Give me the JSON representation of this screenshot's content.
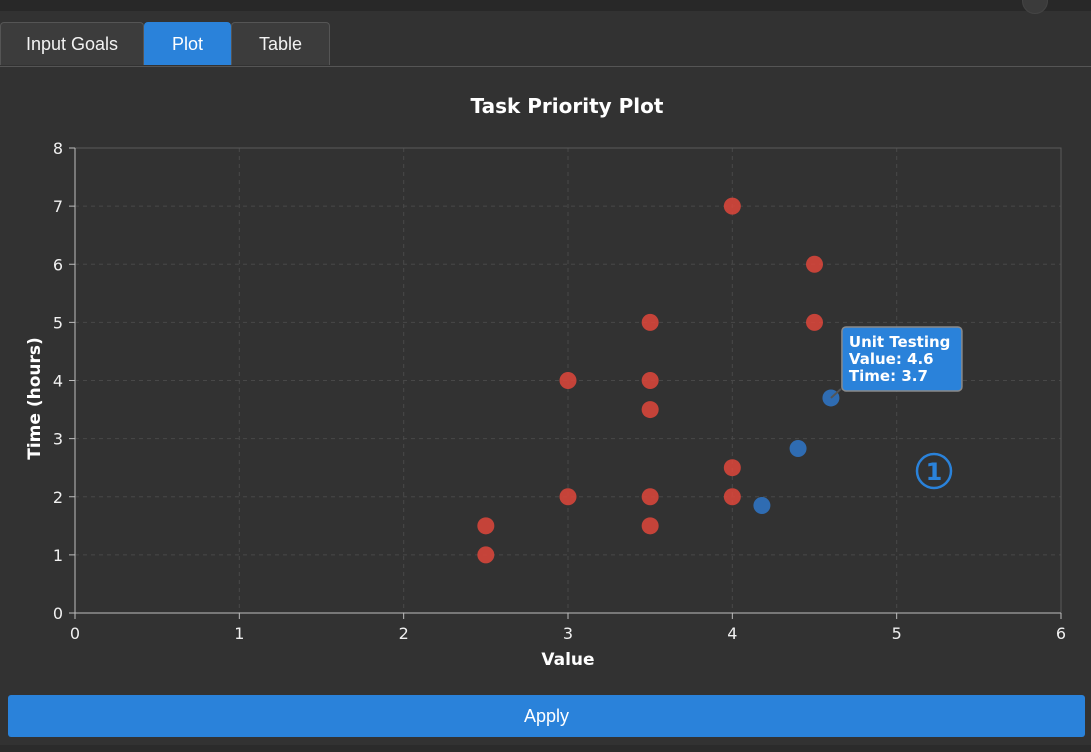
{
  "tabs": [
    {
      "label": "Input Goals",
      "active": false
    },
    {
      "label": "Plot",
      "active": true
    },
    {
      "label": "Table",
      "active": false
    }
  ],
  "apply_label": "Apply",
  "annotation_marker": "1",
  "colors": {
    "accent": "#2a82da",
    "red_points": "#d9463a",
    "blue_points": "#2f74c4",
    "background": "#323232"
  },
  "chart_data": {
    "type": "scatter",
    "title": "Task Priority Plot",
    "xlabel": "Value",
    "ylabel": "Time (hours)",
    "xlim": [
      0,
      6
    ],
    "ylim": [
      0,
      8
    ],
    "xticks": [
      "0",
      "1",
      "2",
      "3",
      "4",
      "5",
      "6"
    ],
    "yticks": [
      "0",
      "1",
      "2",
      "3",
      "4",
      "5",
      "6",
      "7",
      "8"
    ],
    "grid": true,
    "series": [
      {
        "color": "#d9463a",
        "points": [
          {
            "x": 2.5,
            "y": 1.0
          },
          {
            "x": 2.5,
            "y": 1.5
          },
          {
            "x": 3.0,
            "y": 2.0
          },
          {
            "x": 3.0,
            "y": 4.0
          },
          {
            "x": 3.5,
            "y": 1.5
          },
          {
            "x": 3.5,
            "y": 2.0
          },
          {
            "x": 3.5,
            "y": 3.5
          },
          {
            "x": 3.5,
            "y": 4.0
          },
          {
            "x": 3.5,
            "y": 5.0
          },
          {
            "x": 4.0,
            "y": 2.0
          },
          {
            "x": 4.0,
            "y": 2.5
          },
          {
            "x": 4.0,
            "y": 7.0
          },
          {
            "x": 4.5,
            "y": 5.0
          },
          {
            "x": 4.5,
            "y": 6.0
          }
        ]
      },
      {
        "color": "#2f74c4",
        "points": [
          {
            "x": 4.18,
            "y": 1.85
          },
          {
            "x": 4.4,
            "y": 2.83
          },
          {
            "x": 4.6,
            "y": 3.7
          }
        ]
      }
    ],
    "tooltip": {
      "lines": [
        "Unit Testing",
        "Value: 4.6",
        "Time: 3.7"
      ],
      "anchor": {
        "x": 4.6,
        "y": 3.7
      }
    }
  }
}
